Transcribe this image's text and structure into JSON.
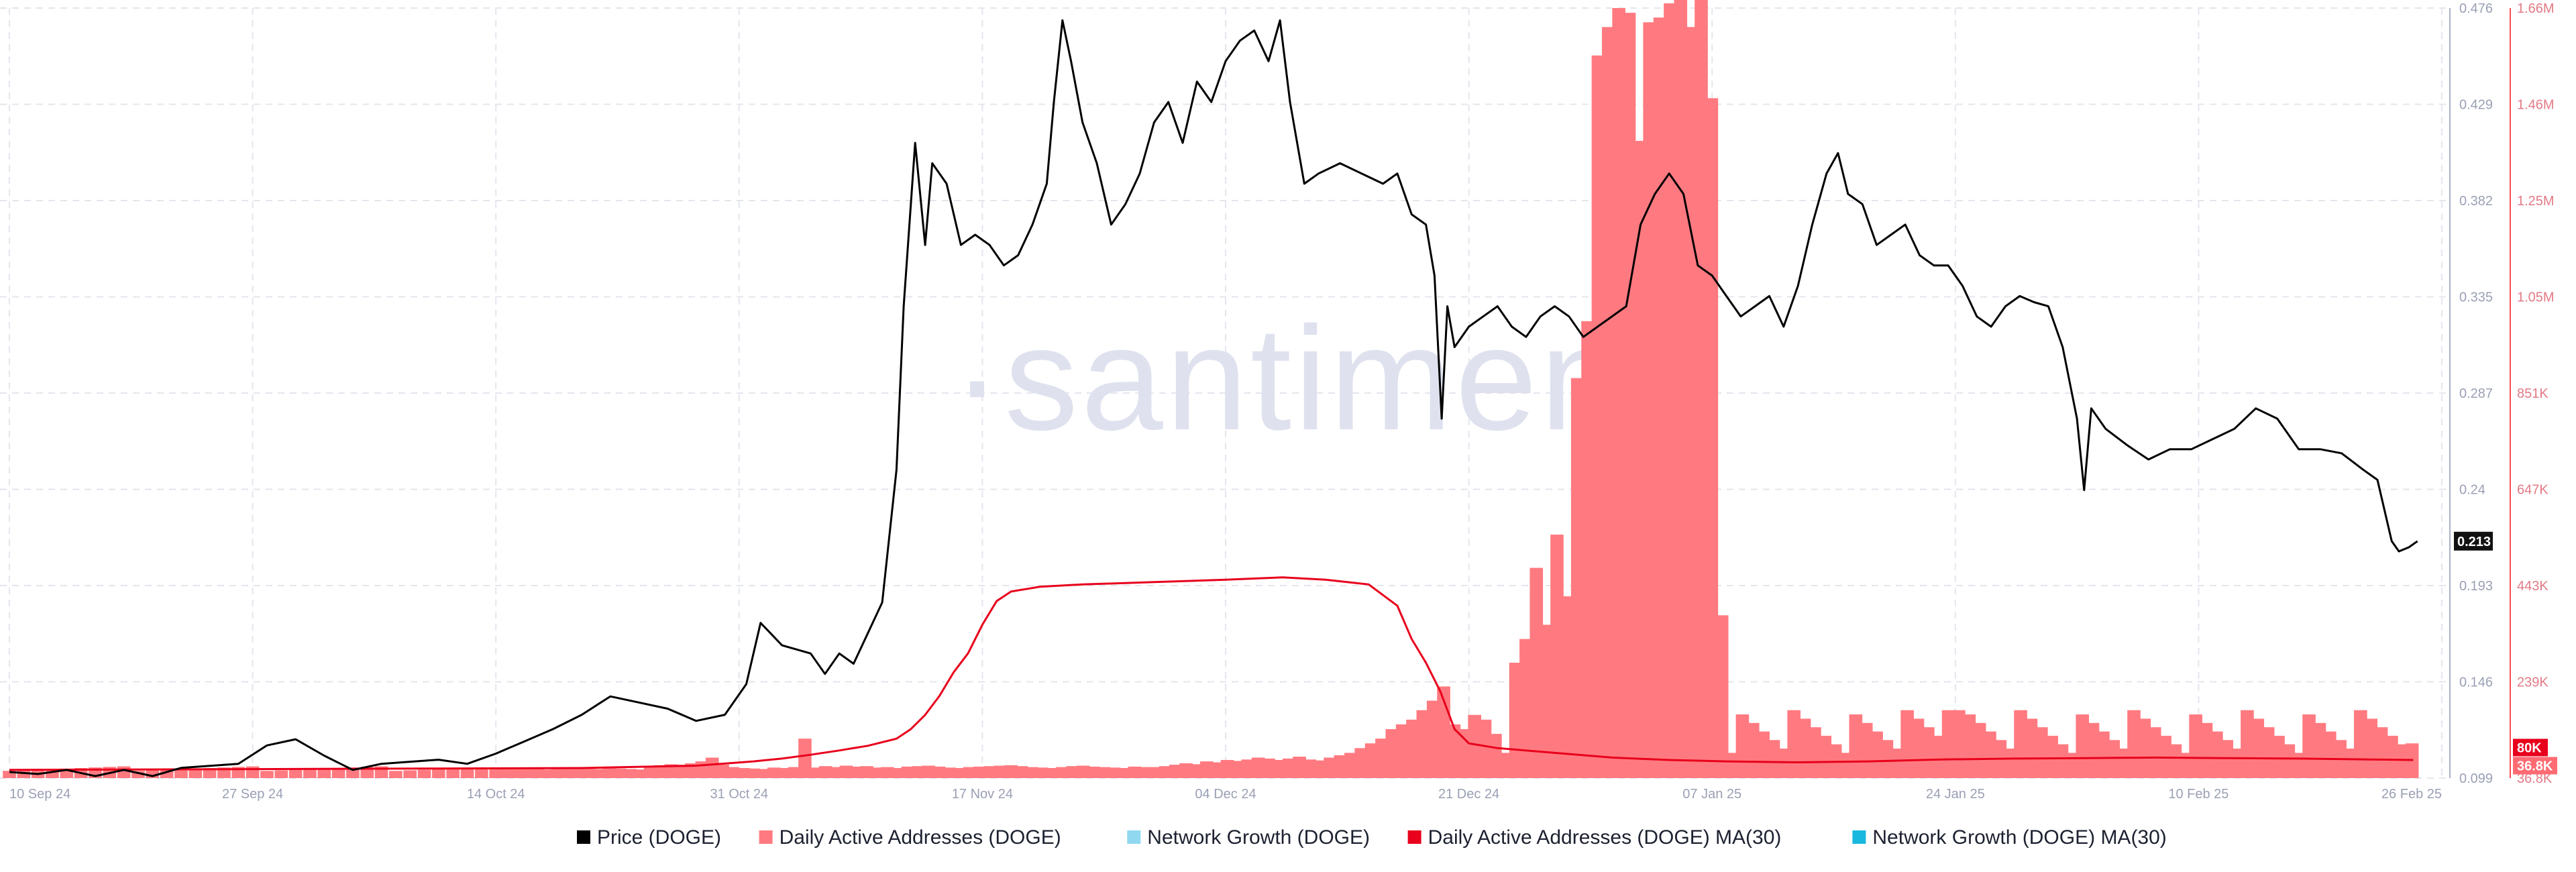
{
  "watermark": "·santiment·",
  "chart_data": {
    "type": "bar",
    "x_ticks": [
      "10 Sep 24",
      "27 Sep 24",
      "14 Oct 24",
      "31 Oct 24",
      "17 Nov 24",
      "04 Dec 24",
      "21 Dec 24",
      "07 Jan 25",
      "24 Jan 25",
      "10 Feb 25",
      "26 Feb 25"
    ],
    "x_range_days": [
      0,
      170
    ],
    "y_left": {
      "ticks": [
        "0.099",
        "0.146",
        "0.193",
        "0.24",
        "0.287",
        "0.335",
        "0.382",
        "0.429",
        "0.476"
      ],
      "range": [
        0.099,
        0.476
      ]
    },
    "y_right": {
      "ticks": [
        "36.8K",
        "239K",
        "443K",
        "647K",
        "851K",
        "1.05M",
        "1.25M",
        "1.46M",
        "1.66M"
      ],
      "range": [
        36800,
        1660000
      ]
    },
    "last_price_label": "0.213",
    "right_badges": [
      "80K",
      "36.8K"
    ],
    "legend": [
      {
        "label": "Price (DOGE)",
        "color": "#000000"
      },
      {
        "label": "Daily Active Addresses (DOGE)",
        "color": "#ff7a80"
      },
      {
        "label": "Network Growth (DOGE)",
        "color": "#8fd8ef"
      },
      {
        "label": "Daily Active Addresses (DOGE) MA(30)",
        "color": "#e8001c"
      },
      {
        "label": "Network Growth (DOGE) MA(30)",
        "color": "#1ab8de"
      }
    ],
    "colors": {
      "price": "#000000",
      "daa": "#ff7a80",
      "ma": "#e8001c",
      "axis_right": "#ff4d5e",
      "grid": "#e4e6ee"
    },
    "series": [
      {
        "name": "Price (DOGE)",
        "points": [
          [
            0,
            0.102
          ],
          [
            2,
            0.101
          ],
          [
            4,
            0.103
          ],
          [
            6,
            0.1
          ],
          [
            8,
            0.103
          ],
          [
            10,
            0.1
          ],
          [
            12,
            0.104
          ],
          [
            14,
            0.105
          ],
          [
            16,
            0.106
          ],
          [
            18,
            0.115
          ],
          [
            20,
            0.118
          ],
          [
            22,
            0.11
          ],
          [
            24,
            0.103
          ],
          [
            26,
            0.106
          ],
          [
            28,
            0.107
          ],
          [
            30,
            0.108
          ],
          [
            32,
            0.106
          ],
          [
            34,
            0.111
          ],
          [
            36,
            0.117
          ],
          [
            38,
            0.123
          ],
          [
            40,
            0.13
          ],
          [
            42,
            0.139
          ],
          [
            44,
            0.136
          ],
          [
            46,
            0.133
          ],
          [
            48,
            0.127
          ],
          [
            50,
            0.13
          ],
          [
            51.5,
            0.145
          ],
          [
            52.5,
            0.175
          ],
          [
            54,
            0.164
          ],
          [
            56,
            0.16
          ],
          [
            57,
            0.15
          ],
          [
            58,
            0.16
          ],
          [
            59,
            0.155
          ],
          [
            60,
            0.17
          ],
          [
            61,
            0.185
          ],
          [
            62,
            0.25
          ],
          [
            62.5,
            0.33
          ],
          [
            63.3,
            0.41
          ],
          [
            64,
            0.36
          ],
          [
            64.5,
            0.4
          ],
          [
            65.5,
            0.39
          ],
          [
            66.5,
            0.36
          ],
          [
            67.5,
            0.365
          ],
          [
            68.5,
            0.36
          ],
          [
            69.5,
            0.35
          ],
          [
            70.5,
            0.355
          ],
          [
            71.5,
            0.37
          ],
          [
            72.5,
            0.39
          ],
          [
            73,
            0.43
          ],
          [
            73.6,
            0.47
          ],
          [
            74.2,
            0.45
          ],
          [
            75,
            0.42
          ],
          [
            76,
            0.4
          ],
          [
            77,
            0.37
          ],
          [
            78,
            0.38
          ],
          [
            79,
            0.395
          ],
          [
            80,
            0.42
          ],
          [
            81,
            0.43
          ],
          [
            82,
            0.41
          ],
          [
            83,
            0.44
          ],
          [
            84,
            0.43
          ],
          [
            85,
            0.45
          ],
          [
            86,
            0.46
          ],
          [
            87,
            0.465
          ],
          [
            88,
            0.45
          ],
          [
            88.8,
            0.47
          ],
          [
            89.5,
            0.43
          ],
          [
            90.5,
            0.39
          ],
          [
            91.5,
            0.395
          ],
          [
            93,
            0.4
          ],
          [
            94.5,
            0.395
          ],
          [
            96,
            0.39
          ],
          [
            97,
            0.395
          ],
          [
            98,
            0.375
          ],
          [
            99,
            0.37
          ],
          [
            99.6,
            0.345
          ],
          [
            100.1,
            0.275
          ],
          [
            100.5,
            0.33
          ],
          [
            101,
            0.31
          ],
          [
            102,
            0.32
          ],
          [
            103,
            0.325
          ],
          [
            104,
            0.33
          ],
          [
            105,
            0.32
          ],
          [
            106,
            0.315
          ],
          [
            107,
            0.325
          ],
          [
            108,
            0.33
          ],
          [
            109,
            0.325
          ],
          [
            110,
            0.315
          ],
          [
            111,
            0.32
          ],
          [
            112,
            0.325
          ],
          [
            113,
            0.33
          ],
          [
            114,
            0.37
          ],
          [
            115,
            0.385
          ],
          [
            116,
            0.395
          ],
          [
            117,
            0.385
          ],
          [
            118,
            0.35
          ],
          [
            119,
            0.345
          ],
          [
            120,
            0.335
          ],
          [
            121,
            0.325
          ],
          [
            122,
            0.33
          ],
          [
            123,
            0.335
          ],
          [
            124,
            0.32
          ],
          [
            125,
            0.34
          ],
          [
            126,
            0.37
          ],
          [
            127,
            0.395
          ],
          [
            127.8,
            0.405
          ],
          [
            128.5,
            0.385
          ],
          [
            129.5,
            0.38
          ],
          [
            130.5,
            0.36
          ],
          [
            131.5,
            0.365
          ],
          [
            132.5,
            0.37
          ],
          [
            133.5,
            0.355
          ],
          [
            134.5,
            0.35
          ],
          [
            135.5,
            0.35
          ],
          [
            136.5,
            0.34
          ],
          [
            137.5,
            0.325
          ],
          [
            138.5,
            0.32
          ],
          [
            139.5,
            0.33
          ],
          [
            140.5,
            0.335
          ],
          [
            141.5,
            0.332
          ],
          [
            142.5,
            0.33
          ],
          [
            143.5,
            0.31
          ],
          [
            144.5,
            0.275
          ],
          [
            145,
            0.24
          ],
          [
            145.5,
            0.28
          ],
          [
            146.5,
            0.27
          ],
          [
            148,
            0.262
          ],
          [
            149.5,
            0.255
          ],
          [
            151,
            0.26
          ],
          [
            152.5,
            0.26
          ],
          [
            154,
            0.265
          ],
          [
            155.5,
            0.27
          ],
          [
            157,
            0.28
          ],
          [
            158.5,
            0.275
          ],
          [
            160,
            0.26
          ],
          [
            161.5,
            0.26
          ],
          [
            163,
            0.258
          ],
          [
            164.5,
            0.25
          ],
          [
            165.5,
            0.245
          ],
          [
            166.5,
            0.215
          ],
          [
            167,
            0.21
          ],
          [
            167.7,
            0.212
          ],
          [
            168.3,
            0.215
          ]
        ]
      },
      {
        "name": "Daily Active Addresses (DOGE)",
        "values": [
          57000,
          57000,
          58000,
          56000,
          57000,
          55000,
          57000,
          56000,
          58000,
          57000,
          56000,
          58000,
          57000,
          56000,
          55000,
          60000,
          64000,
          66000,
          65000,
          68000,
          72000,
          80000,
          65000,
          60000,
          58000,
          57000,
          56000,
          59000,
          58000,
          60000,
          120000,
          59000,
          62000,
          60000,
          63000,
          61000,
          62000,
          59000,
          60000,
          58000,
          61000,
          62000,
          63000,
          61000,
          59000,
          58000,
          60000,
          61000,
          62000,
          63000,
          64000,
          62000,
          60000,
          59000,
          58000,
          60000,
          62000,
          63000,
          61000,
          60000,
          59000,
          58000,
          61000,
          60000,
          60000,
          62000,
          65000,
          68000,
          66000,
          72000,
          70000,
          75000,
          73000,
          76000,
          80000,
          78000,
          75000,
          78000,
          82000,
          76000,
          74000,
          80000,
          85000,
          90000,
          100000,
          110000,
          120000,
          140000,
          150000,
          160000,
          180000,
          200000,
          230000,
          150000,
          140000,
          170000,
          160000,
          130000,
          90000,
          280000,
          330000,
          480000,
          360000,
          550000,
          420000,
          880000,
          1000000,
          1560000,
          1620000,
          1660000,
          1650000,
          1380000,
          1630000,
          1640000,
          1670000,
          1680000,
          1620000,
          1700000,
          1470000,
          380000
        ],
        "values_note": "",
        "points": [
          [
            34.0,
            57000
          ],
          [
            35.0,
            57000
          ],
          [
            36.0,
            58000
          ],
          [
            37.0,
            56000
          ],
          [
            38.0,
            57000
          ],
          [
            39.0,
            55000
          ],
          [
            40.0,
            57000
          ],
          [
            41.0,
            56000
          ],
          [
            42.0,
            58000
          ],
          [
            43.0,
            57000
          ]
        ]
      },
      {
        "name": "Daily Active Addresses (DOGE) MA(30)",
        "points": [
          [
            0,
            54000
          ],
          [
            10,
            55000
          ],
          [
            20,
            56000
          ],
          [
            30,
            57000
          ],
          [
            40,
            58000
          ],
          [
            48,
            63000
          ],
          [
            52,
            72000
          ],
          [
            54,
            78000
          ],
          [
            56,
            86000
          ],
          [
            58,
            95000
          ],
          [
            60,
            105000
          ],
          [
            62,
            120000
          ],
          [
            63,
            140000
          ],
          [
            64,
            170000
          ],
          [
            65,
            210000
          ],
          [
            66,
            260000
          ],
          [
            67,
            300000
          ],
          [
            68,
            360000
          ],
          [
            69,
            410000
          ],
          [
            70,
            430000
          ],
          [
            72,
            440000
          ],
          [
            75,
            445000
          ],
          [
            80,
            450000
          ],
          [
            85,
            455000
          ],
          [
            89,
            460000
          ],
          [
            92,
            455000
          ],
          [
            95,
            445000
          ],
          [
            97,
            400000
          ],
          [
            98,
            330000
          ],
          [
            99,
            280000
          ],
          [
            100,
            220000
          ],
          [
            101,
            140000
          ],
          [
            102,
            110000
          ],
          [
            104,
            100000
          ],
          [
            108,
            90000
          ],
          [
            112,
            80000
          ],
          [
            116,
            75000
          ],
          [
            120,
            72000
          ],
          [
            125,
            70000
          ],
          [
            130,
            72000
          ],
          [
            135,
            76000
          ],
          [
            140,
            78000
          ],
          [
            145,
            79000
          ],
          [
            150,
            80000
          ],
          [
            155,
            79000
          ],
          [
            160,
            78000
          ],
          [
            165,
            76000
          ],
          [
            168,
            75000
          ]
        ]
      }
    ]
  }
}
